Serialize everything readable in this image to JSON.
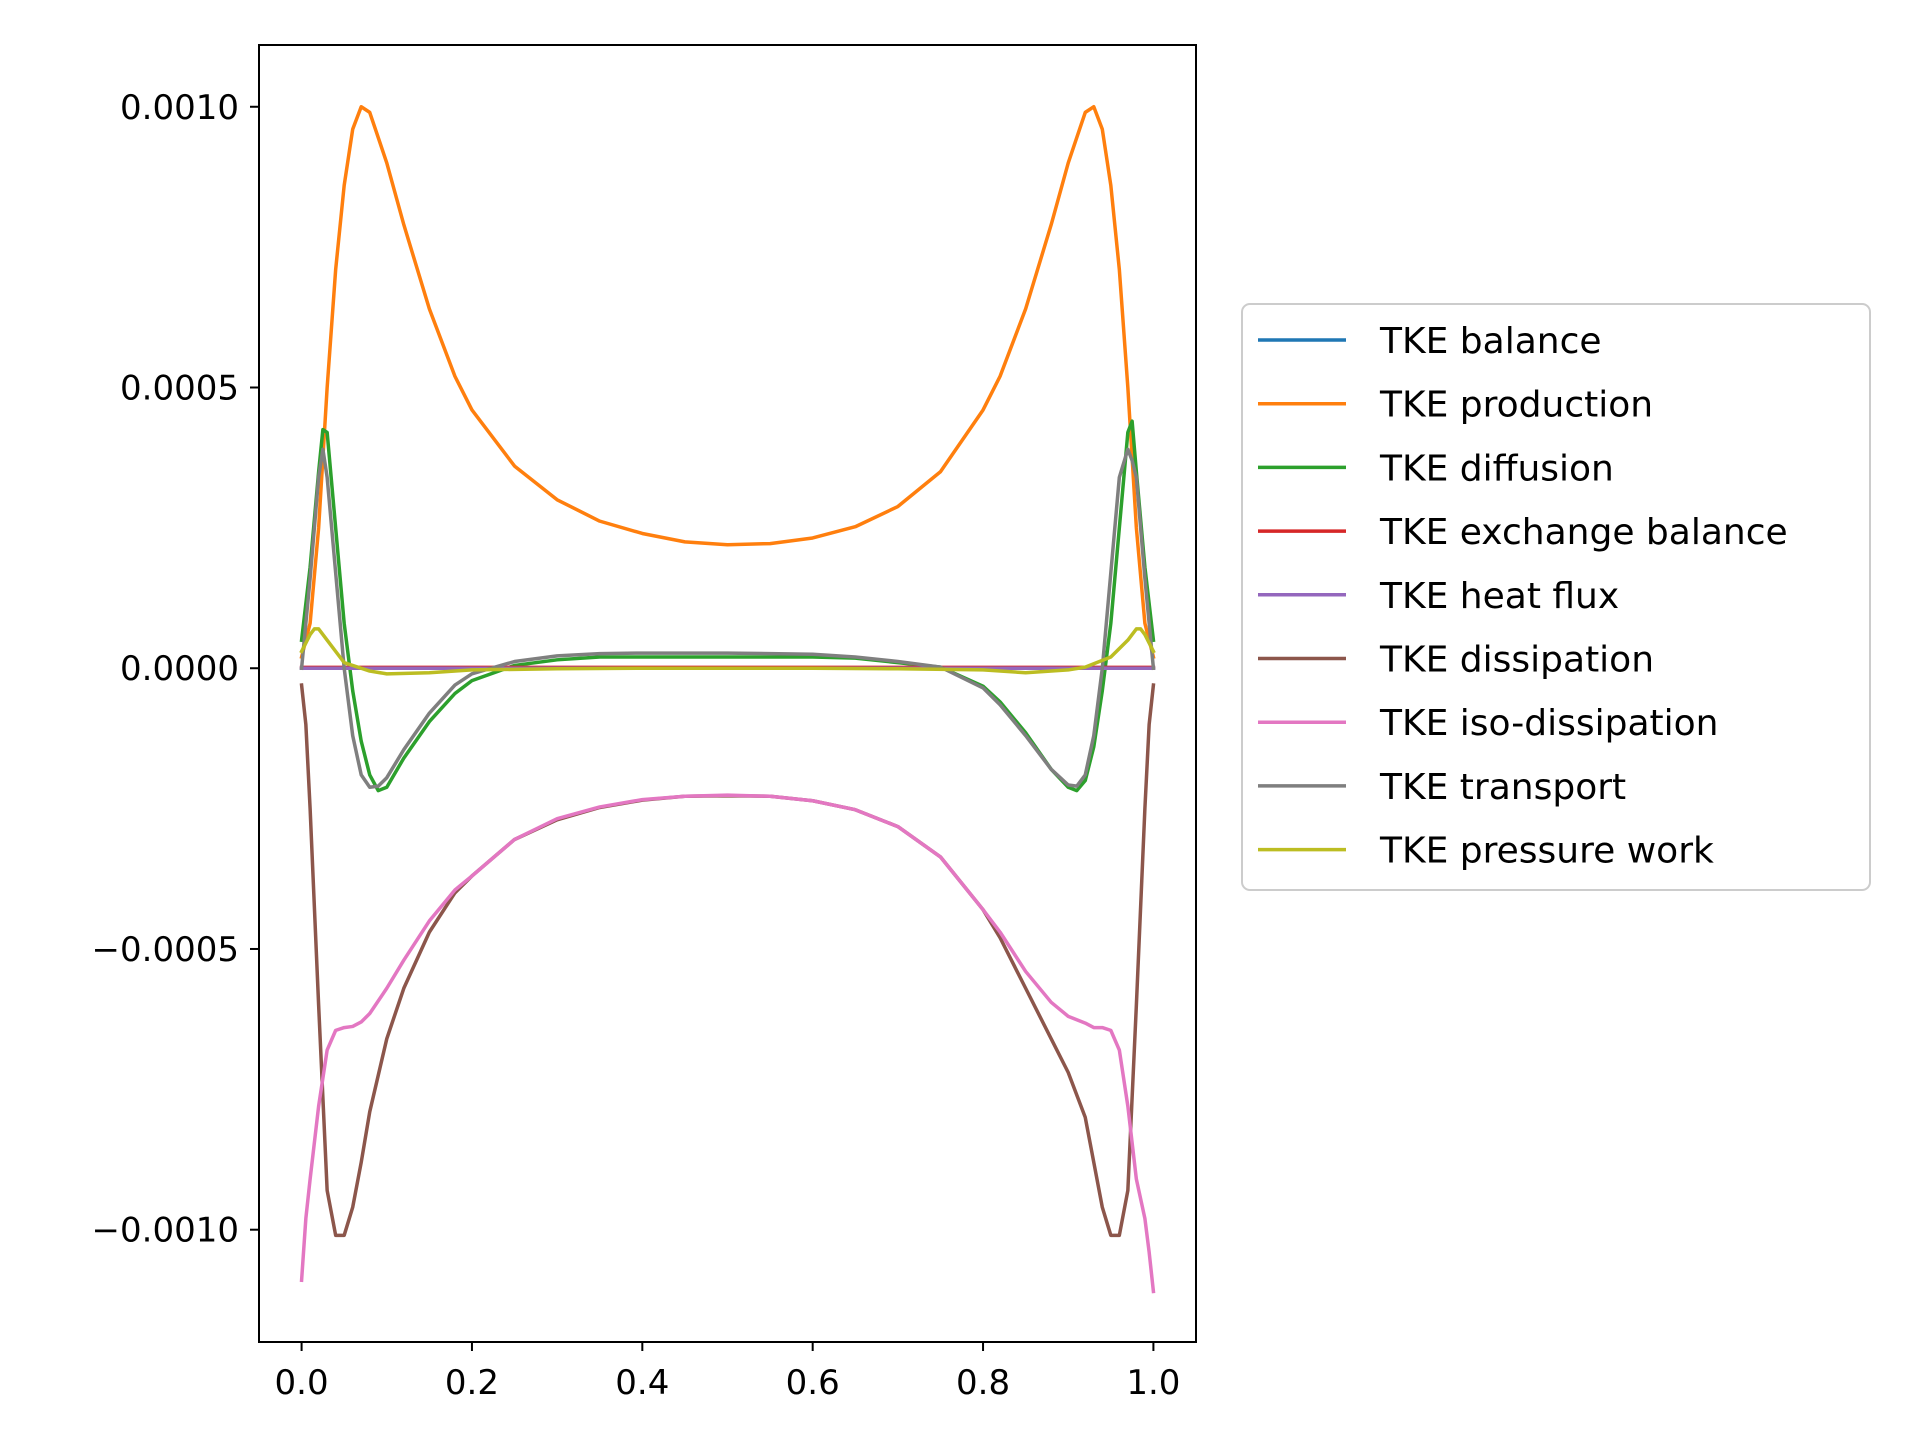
{
  "chart_data": {
    "type": "line",
    "title": "",
    "xlabel": "",
    "ylabel": "",
    "xlim": [
      -0.05,
      1.05
    ],
    "ylim": [
      -0.0012,
      0.00111
    ],
    "grid": false,
    "legend_position": "right",
    "x_ticks": [
      0.0,
      0.2,
      0.4,
      0.6,
      0.8,
      1.0
    ],
    "x_tick_labels": [
      "0.0",
      "0.2",
      "0.4",
      "0.6",
      "0.8",
      "1.0"
    ],
    "y_ticks": [
      0.001,
      0.0005,
      0.0,
      -0.0005,
      -0.001
    ],
    "y_tick_labels": [
      "0.0010",
      "0.0005",
      "0.0000",
      "−0.0005",
      "−0.0010"
    ],
    "series": [
      {
        "name": "TKE balance",
        "color": "#1f77b4",
        "x": [
          0.0,
          0.5,
          1.0
        ],
        "y": [
          0.0,
          0.0,
          0.0
        ]
      },
      {
        "name": "TKE production",
        "color": "#ff7f0e",
        "x": [
          0.0,
          0.01,
          0.02,
          0.03,
          0.04,
          0.05,
          0.06,
          0.07,
          0.08,
          0.1,
          0.12,
          0.15,
          0.18,
          0.2,
          0.25,
          0.3,
          0.35,
          0.4,
          0.45,
          0.5,
          0.55,
          0.6,
          0.65,
          0.7,
          0.75,
          0.8,
          0.82,
          0.85,
          0.88,
          0.9,
          0.92,
          0.93,
          0.94,
          0.95,
          0.96,
          0.97,
          0.98,
          0.99,
          1.0
        ],
        "y": [
          2e-05,
          8e-05,
          0.00025,
          0.0005,
          0.00071,
          0.00086,
          0.00096,
          0.001,
          0.00099,
          0.0009,
          0.00079,
          0.00064,
          0.00052,
          0.00046,
          0.00036,
          0.0003,
          0.000262,
          0.00024,
          0.000225,
          0.00022,
          0.000222,
          0.000232,
          0.000252,
          0.000288,
          0.00035,
          0.00046,
          0.00052,
          0.00064,
          0.00079,
          0.0009,
          0.00099,
          0.001,
          0.00096,
          0.00086,
          0.00071,
          0.0005,
          0.00025,
          8e-05,
          2e-05
        ]
      },
      {
        "name": "TKE diffusion",
        "color": "#2ca02c",
        "x": [
          0.0,
          0.01,
          0.02,
          0.025,
          0.03,
          0.04,
          0.05,
          0.06,
          0.07,
          0.08,
          0.09,
          0.1,
          0.12,
          0.15,
          0.18,
          0.2,
          0.25,
          0.3,
          0.35,
          0.4,
          0.5,
          0.6,
          0.65,
          0.7,
          0.75,
          0.8,
          0.82,
          0.85,
          0.88,
          0.9,
          0.91,
          0.92,
          0.93,
          0.94,
          0.95,
          0.96,
          0.97,
          0.975,
          0.98,
          0.99,
          1.0
        ],
        "y": [
          5e-05,
          0.00018,
          0.00035,
          0.000425,
          0.00042,
          0.00025,
          8e-05,
          -4e-05,
          -0.00013,
          -0.00019,
          -0.000218,
          -0.000212,
          -0.00016,
          -9.5e-05,
          -4.5e-05,
          -2.2e-05,
          5e-06,
          1.5e-05,
          2e-05,
          2e-05,
          2e-05,
          2e-05,
          1.8e-05,
          1e-05,
          2e-06,
          -3.2e-05,
          -6e-05,
          -0.000115,
          -0.00018,
          -0.000212,
          -0.000218,
          -0.0002,
          -0.00014,
          -4e-05,
          8e-05,
          0.00025,
          0.00042,
          0.00044,
          0.00035,
          0.00018,
          5e-05
        ]
      },
      {
        "name": "TKE exchange balance",
        "color": "#d62728",
        "x": [
          0.0,
          0.5,
          1.0
        ],
        "y": [
          1.5e-06,
          1.5e-06,
          1.5e-06
        ]
      },
      {
        "name": "TKE heat flux",
        "color": "#9467bd",
        "x": [
          0.0,
          0.5,
          1.0
        ],
        "y": [
          0.0,
          0.0,
          0.0
        ]
      },
      {
        "name": "TKE dissipation",
        "color": "#8c564b",
        "x": [
          0.0,
          0.005,
          0.01,
          0.02,
          0.03,
          0.04,
          0.05,
          0.06,
          0.07,
          0.08,
          0.1,
          0.12,
          0.15,
          0.18,
          0.2,
          0.25,
          0.3,
          0.35,
          0.4,
          0.45,
          0.5,
          0.55,
          0.6,
          0.65,
          0.7,
          0.75,
          0.8,
          0.82,
          0.85,
          0.88,
          0.9,
          0.92,
          0.93,
          0.94,
          0.95,
          0.96,
          0.97,
          0.98,
          0.99,
          0.995,
          1.0
        ],
        "y": [
          -3e-05,
          -0.0001,
          -0.00025,
          -0.0006,
          -0.00093,
          -0.00101,
          -0.00101,
          -0.00096,
          -0.00088,
          -0.00079,
          -0.00066,
          -0.00057,
          -0.00047,
          -0.0004,
          -0.00037,
          -0.000305,
          -0.00027,
          -0.000248,
          -0.000235,
          -0.000228,
          -0.000227,
          -0.000228,
          -0.000236,
          -0.000252,
          -0.000282,
          -0.000336,
          -0.00043,
          -0.00048,
          -0.00057,
          -0.00066,
          -0.00072,
          -0.0008,
          -0.00088,
          -0.00096,
          -0.00101,
          -0.00101,
          -0.00093,
          -0.0006,
          -0.00025,
          -0.0001,
          -3e-05
        ]
      },
      {
        "name": "TKE iso-dissipation",
        "color": "#e377c2",
        "x": [
          0.0,
          0.005,
          0.01,
          0.02,
          0.03,
          0.04,
          0.05,
          0.06,
          0.07,
          0.08,
          0.1,
          0.12,
          0.15,
          0.18,
          0.2,
          0.25,
          0.3,
          0.35,
          0.4,
          0.45,
          0.5,
          0.55,
          0.6,
          0.65,
          0.7,
          0.75,
          0.8,
          0.82,
          0.85,
          0.88,
          0.9,
          0.92,
          0.93,
          0.94,
          0.95,
          0.96,
          0.97,
          0.98,
          0.99,
          0.995,
          1.0
        ],
        "y": [
          -0.00109,
          -0.00098,
          -0.00091,
          -0.00078,
          -0.00068,
          -0.000645,
          -0.00064,
          -0.000638,
          -0.00063,
          -0.000615,
          -0.00057,
          -0.00052,
          -0.00045,
          -0.000395,
          -0.00037,
          -0.000305,
          -0.000268,
          -0.000247,
          -0.000234,
          -0.000228,
          -0.000226,
          -0.000228,
          -0.000236,
          -0.000252,
          -0.000282,
          -0.000336,
          -0.00043,
          -0.00047,
          -0.00054,
          -0.000595,
          -0.00062,
          -0.000632,
          -0.00064,
          -0.00064,
          -0.000645,
          -0.00068,
          -0.00078,
          -0.00091,
          -0.00098,
          -0.00104,
          -0.00111
        ]
      },
      {
        "name": "TKE transport",
        "color": "#7f7f7f",
        "x": [
          0.0,
          0.01,
          0.02,
          0.025,
          0.03,
          0.04,
          0.05,
          0.06,
          0.07,
          0.08,
          0.09,
          0.1,
          0.12,
          0.15,
          0.18,
          0.2,
          0.25,
          0.3,
          0.35,
          0.4,
          0.5,
          0.6,
          0.65,
          0.7,
          0.75,
          0.8,
          0.82,
          0.85,
          0.88,
          0.9,
          0.91,
          0.92,
          0.93,
          0.94,
          0.95,
          0.96,
          0.97,
          0.975,
          0.98,
          0.99,
          1.0
        ],
        "y": [
          0.0,
          0.00016,
          0.00034,
          0.00039,
          0.00034,
          0.00017,
          0.0,
          -0.00012,
          -0.00019,
          -0.000212,
          -0.00021,
          -0.000195,
          -0.000145,
          -8e-05,
          -3e-05,
          -1e-05,
          1.2e-05,
          2.2e-05,
          2.6e-05,
          2.7e-05,
          2.7e-05,
          2.5e-05,
          2e-05,
          1.2e-05,
          2e-06,
          -3.5e-05,
          -6.5e-05,
          -0.00012,
          -0.00018,
          -0.000208,
          -0.00021,
          -0.00019,
          -0.00012,
          0.0,
          0.00017,
          0.00034,
          0.00039,
          0.00037,
          0.00034,
          0.00016,
          0.0
        ]
      },
      {
        "name": "TKE pressure work",
        "color": "#bcbd22",
        "x": [
          0.0,
          0.01,
          0.015,
          0.02,
          0.03,
          0.05,
          0.08,
          0.1,
          0.15,
          0.2,
          0.3,
          0.4,
          0.5,
          0.6,
          0.7,
          0.8,
          0.85,
          0.9,
          0.92,
          0.95,
          0.97,
          0.98,
          0.985,
          0.99,
          1.0
        ],
        "y": [
          3e-05,
          6e-05,
          7e-05,
          7e-05,
          5e-05,
          1e-05,
          -5e-06,
          -1e-05,
          -8e-06,
          -3e-06,
          -1e-06,
          0.0,
          0.0,
          0.0,
          -1e-06,
          -3e-06,
          -8e-06,
          -3e-06,
          2e-06,
          2e-05,
          5e-05,
          7e-05,
          7e-05,
          6e-05,
          3e-05
        ]
      }
    ]
  }
}
